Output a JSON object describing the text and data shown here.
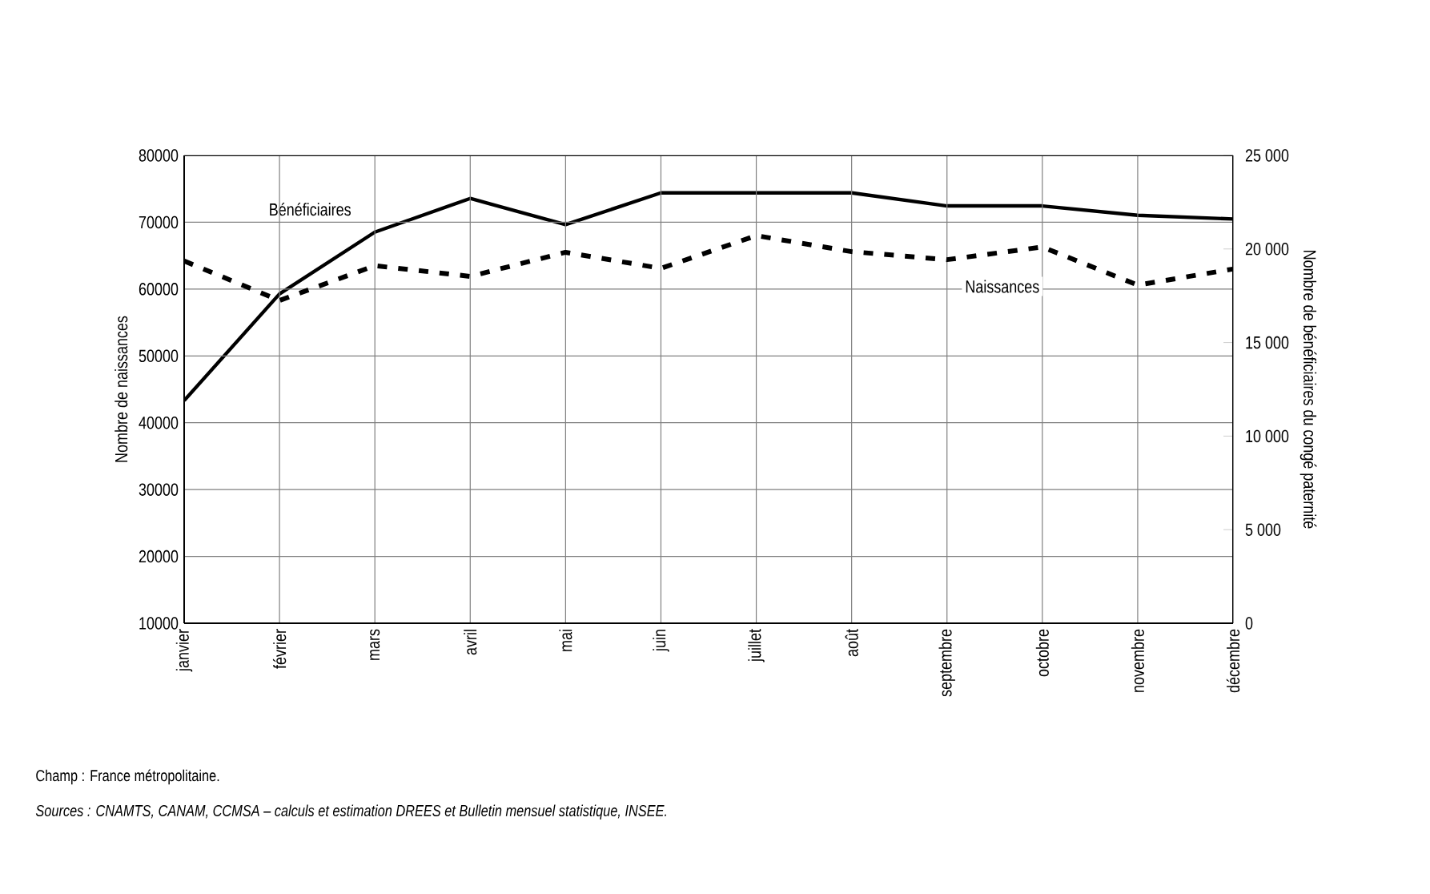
{
  "chart_data": {
    "type": "line",
    "ylabel": "Nombre de naissances",
    "y2label": "Nombre de bénéficiaires du congé paternité",
    "categories": [
      "janvier",
      "février",
      "mars",
      "avril",
      "mai",
      "juin",
      "juillet",
      "août",
      "septembre",
      "octobre",
      "novembre",
      "décembre"
    ],
    "series": [
      {
        "name": "Bénéficiaires",
        "color": "#000000",
        "axis": "y2",
        "line_style": "solid",
        "values": [
          11900,
          17600,
          20900,
          22700,
          21300,
          23000,
          23000,
          23000,
          22300,
          22300,
          21800,
          21600
        ]
      },
      {
        "name": "Naissances",
        "color": "#000000",
        "line_style": "dashed",
        "values": [
          64200,
          58300,
          63500,
          61900,
          65500,
          63100,
          68000,
          65600,
          64400,
          66300,
          60600,
          63000
        ]
      }
    ],
    "ylim": [
      10000,
      80000
    ],
    "yticks": [
      10000,
      20000,
      30000,
      40000,
      50000,
      60000,
      70000,
      80000
    ],
    "y2lim": [
      0,
      25000
    ],
    "y2ticks": [
      0,
      {
        "value": 5000,
        "label": "5 000"
      },
      {
        "value": 10000,
        "label": "10 000"
      },
      {
        "value": 15000,
        "label": "15 000"
      },
      {
        "value": 20000,
        "label": "20 000"
      },
      {
        "value": 25000,
        "label": "25 000"
      }
    ],
    "grid": true,
    "annotations": [
      "Champ : France métropolitaine.",
      "Sources : CNAMTS, CANAM, CCMSA – calculs et estimation DREES et Bulletin mensuel statistique, INSEE."
    ]
  }
}
